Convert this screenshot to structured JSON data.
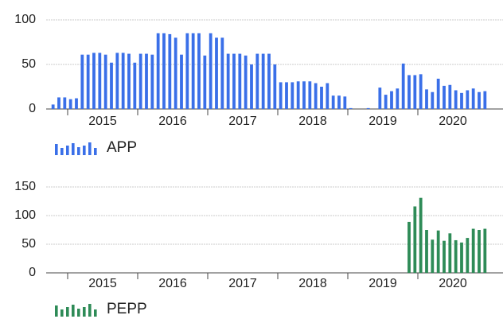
{
  "chart_data": [
    {
      "type": "bar",
      "categories": [
        null,
        null,
        null,
        null,
        null,
        null,
        null,
        null,
        null,
        "2015",
        null,
        null,
        null,
        null,
        null,
        null,
        null,
        null,
        null,
        null,
        null,
        "2016",
        null,
        null,
        null,
        null,
        null,
        null,
        null,
        null,
        null,
        null,
        null,
        "2017",
        null,
        null,
        null,
        null,
        null,
        null,
        null,
        null,
        null,
        null,
        null,
        "2018",
        null,
        null,
        null,
        null,
        null,
        null,
        null,
        null,
        null,
        null,
        null,
        "2019",
        null,
        null,
        null,
        null,
        null,
        null,
        null,
        null,
        null,
        null,
        null,
        "2020",
        null,
        null,
        null,
        null,
        null
      ],
      "series": [
        {
          "name": "APP",
          "color": "#3a6fe8",
          "values": [
            5,
            13,
            13,
            11,
            12,
            61,
            61,
            63,
            63,
            61,
            52,
            63,
            63,
            62,
            52,
            62,
            62,
            61,
            85,
            85,
            84,
            80,
            61,
            85,
            85,
            85,
            60,
            85,
            80,
            80,
            62,
            62,
            62,
            60,
            50,
            62,
            62,
            62,
            50,
            30,
            30,
            30,
            31,
            31,
            31,
            29,
            25,
            29,
            15,
            15,
            14,
            1,
            0,
            0,
            1,
            0,
            24,
            16,
            20,
            23,
            51,
            38,
            38,
            39,
            22,
            19,
            34,
            26,
            27,
            21,
            18,
            21,
            23,
            19,
            20
          ]
        }
      ],
      "ylim": [
        0,
        100
      ],
      "yticks": [
        0,
        50,
        100
      ],
      "grid": true
    },
    {
      "type": "bar",
      "categories": [
        null,
        null,
        null,
        null,
        null,
        null,
        null,
        null,
        null,
        "2015",
        null,
        null,
        null,
        null,
        null,
        null,
        null,
        null,
        null,
        null,
        null,
        "2016",
        null,
        null,
        null,
        null,
        null,
        null,
        null,
        null,
        null,
        null,
        null,
        "2017",
        null,
        null,
        null,
        null,
        null,
        null,
        null,
        null,
        null,
        null,
        null,
        "2018",
        null,
        null,
        null,
        null,
        null,
        null,
        null,
        null,
        null,
        null,
        null,
        "2019",
        null,
        null,
        null,
        null,
        null,
        null,
        null,
        null,
        null,
        null,
        null,
        "2020",
        null,
        null,
        null,
        null,
        null
      ],
      "series": [
        {
          "name": "PEPP",
          "color": "#2e8b57",
          "values": [
            null,
            null,
            null,
            null,
            null,
            null,
            null,
            null,
            null,
            null,
            null,
            null,
            null,
            null,
            null,
            null,
            null,
            null,
            null,
            null,
            null,
            null,
            null,
            null,
            null,
            null,
            null,
            null,
            null,
            null,
            null,
            null,
            null,
            null,
            null,
            null,
            null,
            null,
            null,
            null,
            null,
            null,
            null,
            null,
            null,
            null,
            null,
            null,
            null,
            null,
            null,
            null,
            null,
            null,
            null,
            null,
            null,
            null,
            null,
            null,
            null,
            89,
            116,
            131,
            75,
            58,
            74,
            56,
            69,
            57,
            53,
            61,
            77,
            75,
            77
          ]
        }
      ],
      "ylim": [
        0,
        150
      ],
      "yticks": [
        0,
        50,
        100,
        150
      ],
      "grid": true
    }
  ]
}
